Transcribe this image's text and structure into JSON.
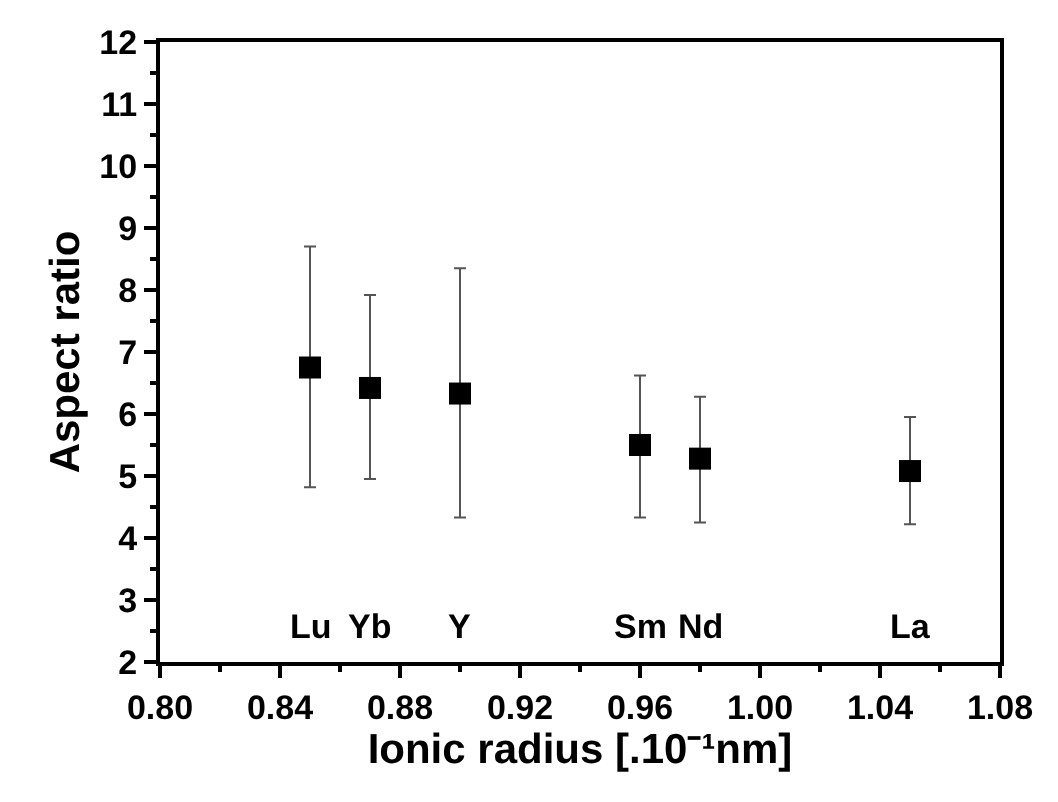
{
  "chart_data": {
    "type": "scatter",
    "xlabel": "Ionic radius [.10⁻¹nm]",
    "ylabel": "Aspect ratio",
    "x": [
      0.85,
      0.87,
      0.9,
      0.96,
      0.98,
      1.05
    ],
    "series": [
      {
        "color": "#000000",
        "values": [
          6.75,
          6.42,
          6.33,
          5.5,
          5.28,
          5.08
        ],
        "errors": [
          [
            4.82,
            8.7
          ],
          [
            4.95,
            7.92
          ],
          [
            4.33,
            8.35
          ],
          [
            4.33,
            6.62
          ],
          [
            4.25,
            6.28
          ],
          [
            4.22,
            5.95
          ]
        ]
      }
    ],
    "annotations": [
      "Lu",
      "Yb",
      "Y",
      "Sm",
      "Nd",
      "La"
    ],
    "xlim": [
      0.8,
      1.08
    ],
    "xticks": [
      {
        "value": 0.8,
        "label": "0.80"
      },
      0.84,
      0.88,
      0.92,
      0.96,
      {
        "value": 1.0,
        "label": "1.00"
      },
      1.04,
      1.08
    ],
    "ylim": [
      2,
      12
    ],
    "yticks": [
      2,
      3,
      4,
      5,
      6,
      7,
      8,
      9,
      10,
      11,
      12
    ],
    "marker": "square"
  }
}
